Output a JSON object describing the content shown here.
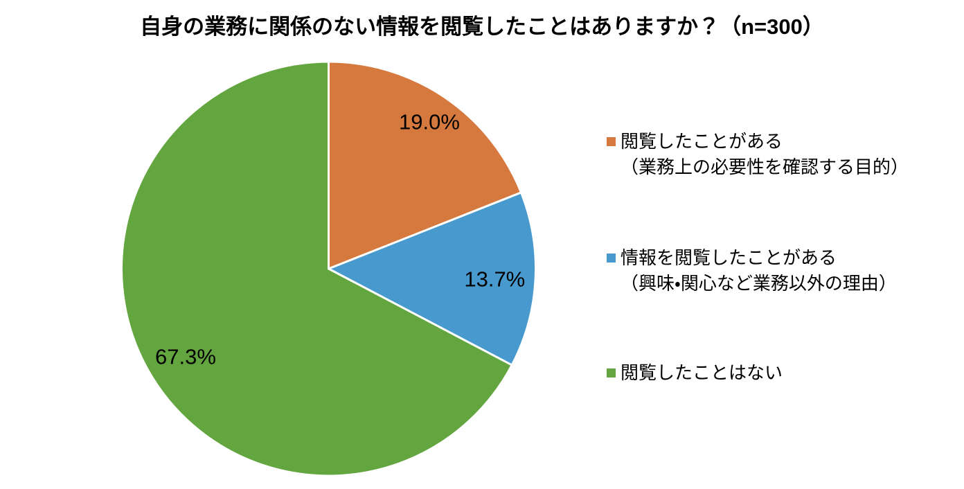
{
  "page": {
    "background": "#FFFFFF"
  },
  "chart_data": {
    "type": "pie",
    "title": "自身の業務に関係のない情報を閲覧したことはありますか？（n=300）",
    "categories": [
      "閲覧したことがある（業務上の必要性を確認する目的）",
      "情報を閲覧したことがある（興味・関心など業務以外の理由）",
      "閲覧したことはない"
    ],
    "values": [
      19.0,
      13.7,
      67.3
    ],
    "labels": [
      "19.0%",
      "13.7%",
      "67.3%"
    ],
    "colors": [
      "#D6793E",
      "#4899CE",
      "#63A640"
    ],
    "unit": "percent",
    "start_angle_deg": 0,
    "direction": "clockwise",
    "separator_color": "#FFFFFF",
    "legend_position": "right",
    "label_position": "inside",
    "label_radius_ratios": [
      0.866,
      0.803,
      0.807
    ]
  },
  "legend": {
    "items": [
      {
        "line1": "閲覧したことがある",
        "line2": "（業務上の必要性を確認する目的）"
      },
      {
        "line1": "情報を閲覧したことがある",
        "line2": "（興味・関心など業務以外の理由）"
      },
      {
        "line1": "閲覧したことはない",
        "line2": ""
      }
    ]
  }
}
